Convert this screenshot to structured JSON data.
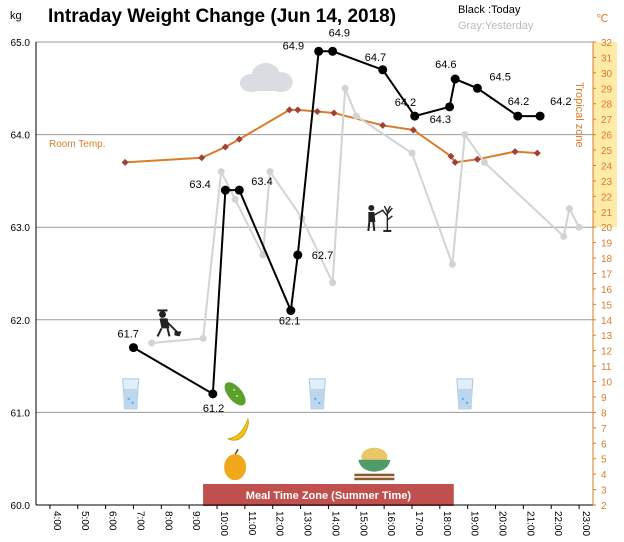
{
  "chart_data": {
    "type": "line",
    "title": "Intraday Weight Change (Jun 14, 2018)",
    "ylabel": "kg",
    "y2label": "℃",
    "ylim": [
      60.0,
      65.0
    ],
    "y2lim": [
      2,
      32
    ],
    "y_ticks": [
      "60.0",
      "61.0",
      "62.0",
      "63.0",
      "64.0",
      "65.0"
    ],
    "y2_ticks": [
      "2",
      "3",
      "4",
      "5",
      "6",
      "7",
      "8",
      "9",
      "10",
      "11",
      "12",
      "13",
      "14",
      "15",
      "16",
      "17",
      "18",
      "19",
      "20",
      "21",
      "22",
      "23",
      "24",
      "25",
      "26",
      "27",
      "28",
      "29",
      "30",
      "31",
      "32"
    ],
    "x_ticks": [
      "4:00",
      "5:00",
      "6:00",
      "7:00",
      "8:00",
      "9:00",
      "10:00",
      "11:00",
      "12:00",
      "13:00",
      "14:00",
      "15:00",
      "16:00",
      "17:00",
      "18:00",
      "19:00",
      "20:00",
      "21:00",
      "22:00",
      "23:00"
    ],
    "xlim": [
      3.5,
      23.5
    ],
    "legend": [
      "Black :Today",
      "Gray:Yesterday"
    ],
    "series": [
      {
        "name": "Today",
        "color": "#000000",
        "x": [
          7.0,
          9.85,
          10.3,
          10.8,
          12.65,
          12.9,
          13.65,
          14.15,
          15.95,
          17.1,
          18.35,
          18.55,
          19.35,
          20.8,
          21.6
        ],
        "values": [
          61.7,
          61.2,
          63.4,
          63.4,
          62.1,
          62.7,
          64.9,
          64.9,
          64.7,
          64.2,
          64.3,
          64.6,
          64.5,
          64.2,
          64.2
        ],
        "labels": [
          "61.7",
          "61.2",
          "63.4",
          "63.4",
          "62.1",
          "62.7",
          "64.9",
          "64.9",
          "64.7",
          "64.2",
          "64.3",
          "64.6",
          "64.5",
          "64.2",
          "64.2"
        ]
      },
      {
        "name": "Yesterday",
        "color": "#d3d3d3",
        "x": [
          7.65,
          9.5,
          10.15,
          10.65,
          11.65,
          11.9,
          13.05,
          14.15,
          14.6,
          15.0,
          17.0,
          18.45,
          18.9,
          19.6,
          22.45,
          22.65,
          23.0
        ],
        "values": [
          61.75,
          61.8,
          63.6,
          63.3,
          62.7,
          63.6,
          63.1,
          62.4,
          64.5,
          64.2,
          63.8,
          62.6,
          64.0,
          63.7,
          62.9,
          63.2,
          63.0
        ]
      },
      {
        "name": "Room Temp.",
        "axis": "right",
        "color": "#d97c2b",
        "x": [
          6.7,
          9.45,
          10.3,
          10.8,
          12.6,
          12.9,
          13.6,
          14.2,
          15.95,
          17.05,
          18.4,
          18.55,
          19.35,
          20.7,
          21.5
        ],
        "values": [
          24.2,
          24.5,
          25.2,
          25.7,
          27.6,
          27.6,
          27.5,
          27.4,
          26.6,
          26.3,
          24.6,
          24.2,
          24.4,
          24.9,
          24.8
        ]
      }
    ],
    "annotations": {
      "room_temp_label": "Room Temp.",
      "tropical_label": "Tropical zone",
      "tropical_range": [
        20,
        32
      ],
      "meal_zone_label": "Meal Time Zone (Summer Time)",
      "meal_zone_range": [
        9.5,
        18.5
      ]
    },
    "icons": [
      {
        "name": "cloud-icon",
        "x": 11.75,
        "y": 64.6
      },
      {
        "name": "shovel-worker-icon",
        "x": 8.15,
        "y": 61.95
      },
      {
        "name": "gardening-icon",
        "x": 15.9,
        "y": 63.1
      },
      {
        "name": "water-glass-icon",
        "x": 6.9,
        "y": 61.2
      },
      {
        "name": "water-glass-icon",
        "x": 13.6,
        "y": 61.2
      },
      {
        "name": "water-glass-icon",
        "x": 18.9,
        "y": 61.2
      },
      {
        "name": "cucumber-icon",
        "x": 10.65,
        "y": 61.2
      },
      {
        "name": "banana-icon",
        "x": 10.75,
        "y": 60.8
      },
      {
        "name": "mango-icon",
        "x": 10.65,
        "y": 60.43
      },
      {
        "name": "rice-bowl-icon",
        "x": 15.65,
        "y": 60.5
      }
    ],
    "grid": true,
    "legend_position": "top-right"
  }
}
